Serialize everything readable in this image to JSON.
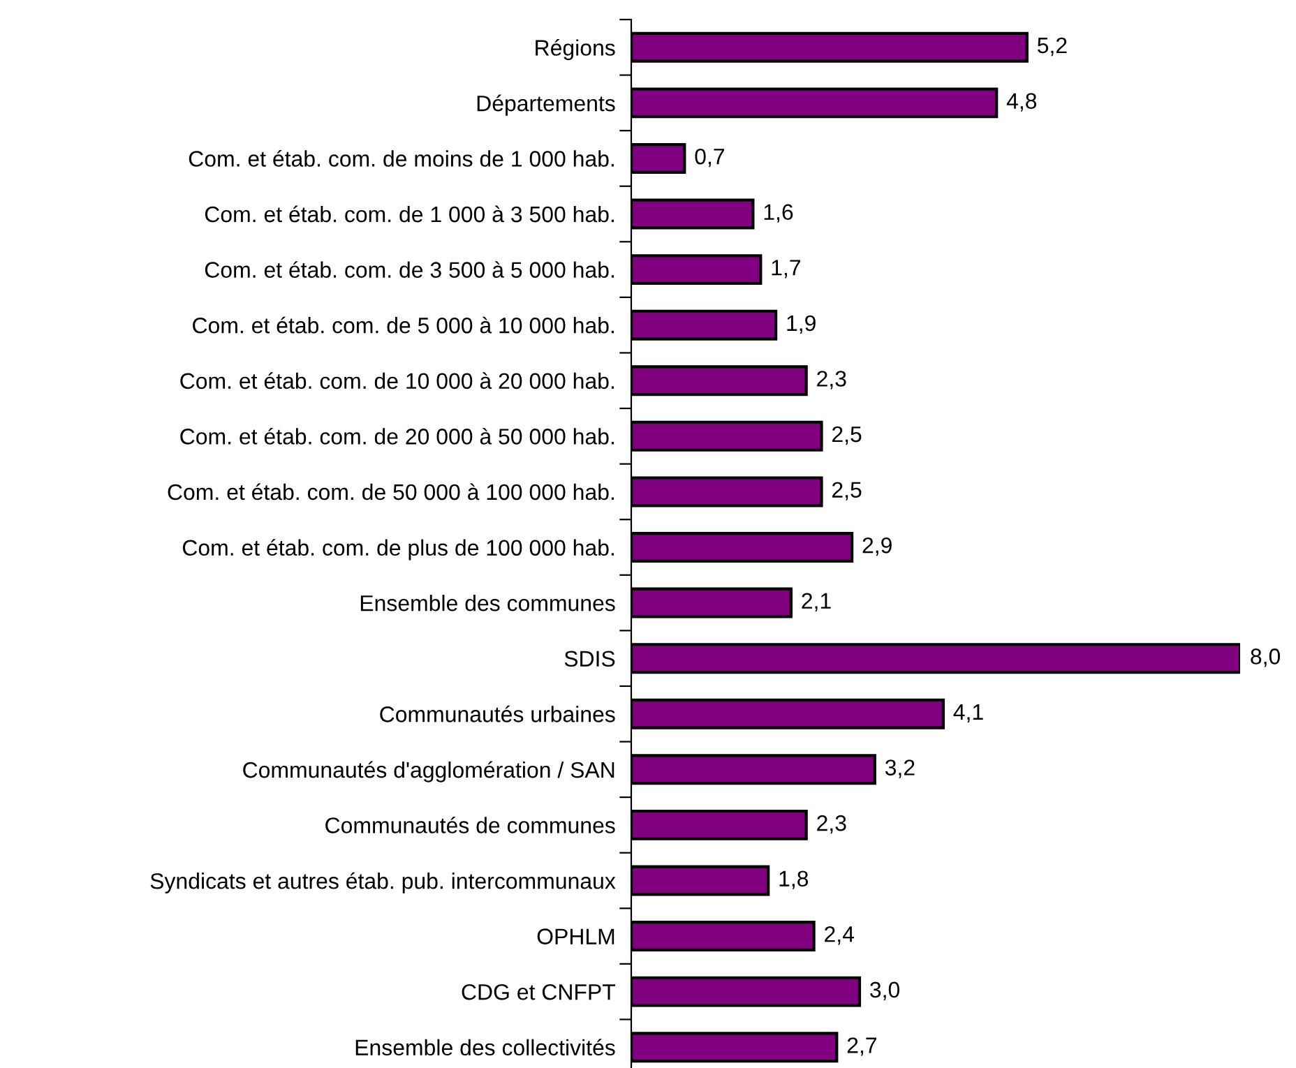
{
  "chart_data": {
    "type": "bar",
    "orientation": "horizontal",
    "categories": [
      "Régions",
      "Départements",
      "Com. et étab. com. de moins de 1 000 hab.",
      "Com. et étab. com. de 1 000 à 3 500 hab.",
      "Com. et étab. com. de 3 500 à 5 000 hab.",
      "Com. et étab. com. de 5 000 à 10 000 hab.",
      "Com. et étab. com. de 10 000 à 20 000 hab.",
      "Com. et étab. com. de 20 000 à 50 000 hab.",
      "Com. et étab. com. de 50 000 à 100 000 hab.",
      "Com. et étab. com. de plus de 100 000 hab.",
      "Ensemble des communes",
      "SDIS",
      "Communautés urbaines",
      "Communautés d'agglomération / SAN",
      "Communautés de communes",
      "Syndicats et autres étab. pub. intercommunaux",
      "OPHLM",
      "CDG et CNFPT",
      "Ensemble des collectivités"
    ],
    "values": [
      5.2,
      4.8,
      0.7,
      1.6,
      1.7,
      1.9,
      2.3,
      2.5,
      2.5,
      2.9,
      2.1,
      8.0,
      4.1,
      3.2,
      2.3,
      1.8,
      2.4,
      3.0,
      2.7
    ],
    "value_labels": [
      "5,2",
      "4,8",
      "0,7",
      "1,6",
      "1,7",
      "1,9",
      "2,3",
      "2,5",
      "2,5",
      "2,9",
      "2,1",
      "8,0",
      "4,1",
      "3,2",
      "2,3",
      "1,8",
      "2,4",
      "3,0",
      "2,7"
    ],
    "color": "#800080",
    "xlim": [
      0,
      8
    ],
    "tick_labels": "y",
    "grid": false,
    "legend": false
  }
}
